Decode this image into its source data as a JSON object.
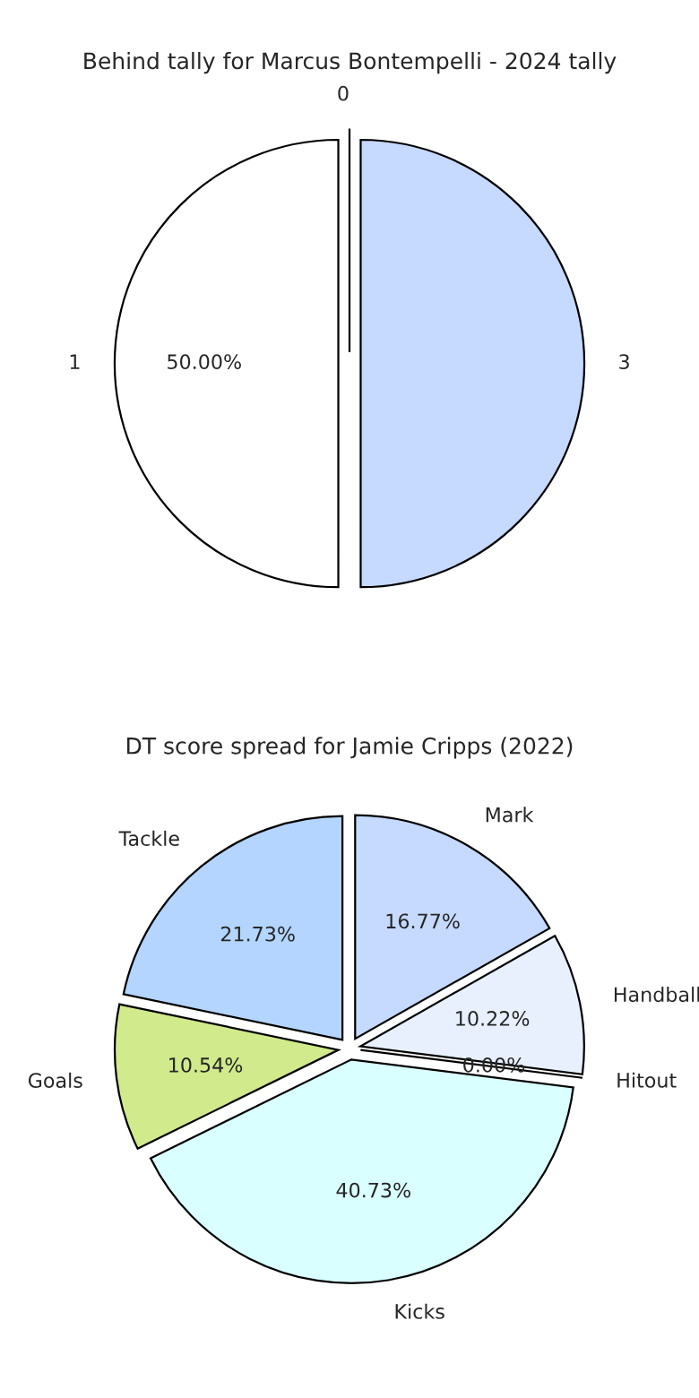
{
  "chart_data": [
    {
      "type": "pie",
      "title": "Behind tally for Marcus Bontempelli - 2024 tally",
      "categories": [
        "1",
        "3",
        "0"
      ],
      "values": [
        50,
        50,
        0
      ],
      "colors": [
        "#ffffff",
        "#c6d9ff",
        "#e8f0fe"
      ],
      "value_labels": [
        "50.00%",
        null,
        null
      ]
    },
    {
      "type": "pie",
      "title": "DT score spread for Jamie Cripps (2022)",
      "categories": [
        "Tackle",
        "Goals",
        "Kicks",
        "Hitout",
        "Handball",
        "Mark"
      ],
      "values": [
        21.73,
        10.54,
        40.73,
        0,
        10.22,
        16.77
      ],
      "colors": [
        "#b3d5ff",
        "#d0ea8c",
        "#d9ffff",
        "#e8f0fe",
        "#e8f0fe",
        "#c6d9ff"
      ],
      "value_labels": [
        "21.73%",
        "10.54%",
        "40.73%",
        "0.00%",
        "10.22%",
        "16.77%"
      ]
    }
  ]
}
